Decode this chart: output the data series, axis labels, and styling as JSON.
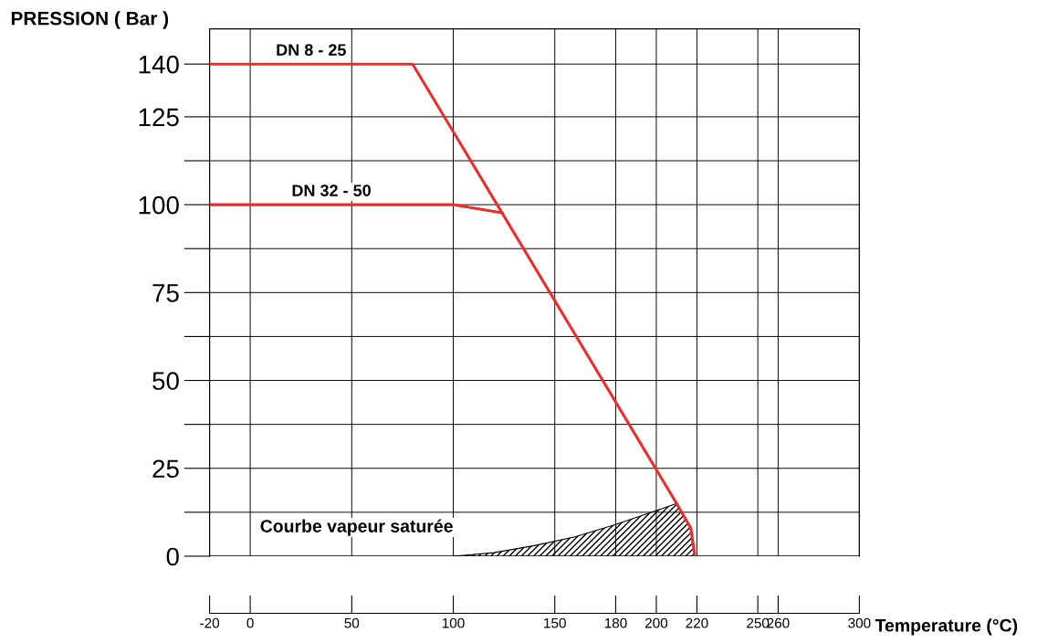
{
  "chart_data": {
    "type": "line",
    "ylabel": "PRESSION ( Bar )",
    "xlabel": "Temperature (°C)",
    "xlim": [
      -20,
      300
    ],
    "ylim": [
      0,
      150
    ],
    "xticks": [
      {
        "value": -20,
        "label": "-20"
      },
      0,
      50,
      100,
      150,
      180,
      200,
      220,
      250,
      260,
      300
    ],
    "yticks": [
      0,
      {
        "value": 12.5,
        "label": null
      },
      25,
      {
        "value": 37.5,
        "label": null
      },
      50,
      {
        "value": 62.5,
        "label": null
      },
      75,
      {
        "value": 87.5,
        "label": null
      },
      100,
      {
        "value": 112.5,
        "label": null
      },
      125,
      140
    ],
    "grid": true,
    "legend": false,
    "series": [
      {
        "name": "DN 8 - 25",
        "type": "line",
        "color": "#ee2b2b",
        "x": [
          -20,
          80,
          210,
          217,
          219
        ],
        "values": [
          140,
          140,
          15,
          8,
          0
        ]
      },
      {
        "name": "DN 32 - 50",
        "type": "line",
        "color": "#ee2b2b",
        "x": [
          -20,
          100,
          124
        ],
        "values": [
          100,
          100,
          97.7
        ]
      },
      {
        "name": "Courbe vapeur saturée",
        "type": "area",
        "color": "#000000",
        "x": [
          100,
          120,
          140,
          160,
          180,
          200,
          210,
          217,
          219
        ],
        "values": [
          0,
          1,
          3,
          5.5,
          9,
          13,
          15,
          8,
          0
        ]
      }
    ]
  }
}
